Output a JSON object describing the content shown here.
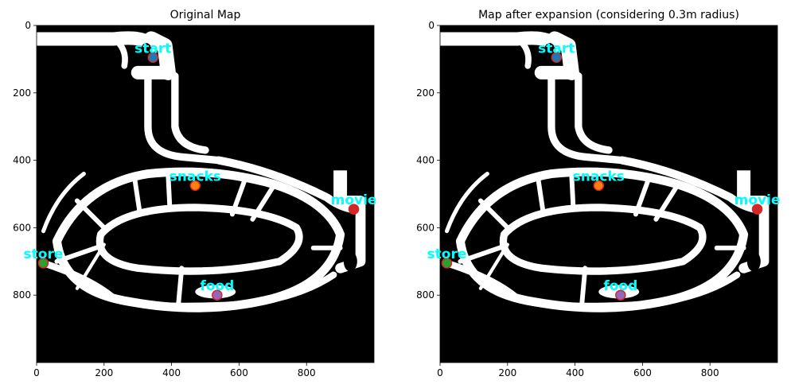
{
  "chart_data": [
    {
      "type": "scatter",
      "title": "Original Map",
      "xlabel": "",
      "ylabel": "",
      "xlim": [
        0,
        1000
      ],
      "ylim": [
        1000,
        0
      ],
      "xticks": [
        0,
        200,
        400,
        600,
        800
      ],
      "yticks": [
        0,
        200,
        400,
        600,
        800
      ],
      "grid": false,
      "background": "occupancy-map",
      "points": [
        {
          "label": "start",
          "x": 345,
          "y": 95,
          "color": "#1f77b4"
        },
        {
          "label": "snacks",
          "x": 470,
          "y": 475,
          "color": "#ff7f0e"
        },
        {
          "label": "movie",
          "x": 940,
          "y": 545,
          "color": "#d62728"
        },
        {
          "label": "store",
          "x": 20,
          "y": 705,
          "color": "#2ca02c"
        },
        {
          "label": "food",
          "x": 535,
          "y": 800,
          "color": "#9467bd"
        }
      ]
    },
    {
      "type": "scatter",
      "title": "Map after expansion (considering 0.3m radius)",
      "xlabel": "",
      "ylabel": "",
      "xlim": [
        0,
        1000
      ],
      "ylim": [
        1000,
        0
      ],
      "xticks": [
        0,
        200,
        400,
        600,
        800
      ],
      "yticks": [
        0,
        200,
        400,
        600,
        800
      ],
      "grid": false,
      "background": "occupancy-map-expanded",
      "points": [
        {
          "label": "start",
          "x": 345,
          "y": 95,
          "color": "#1f77b4"
        },
        {
          "label": "snacks",
          "x": 470,
          "y": 475,
          "color": "#ff7f0e"
        },
        {
          "label": "movie",
          "x": 940,
          "y": 545,
          "color": "#d62728"
        },
        {
          "label": "store",
          "x": 20,
          "y": 705,
          "color": "#2ca02c"
        },
        {
          "label": "food",
          "x": 535,
          "y": 800,
          "color": "#9467bd"
        }
      ]
    }
  ],
  "colors": {
    "label_text": "#00ffff",
    "marker_edge": "#d62728",
    "map_free": "#ffffff",
    "map_occupied": "#000000"
  }
}
